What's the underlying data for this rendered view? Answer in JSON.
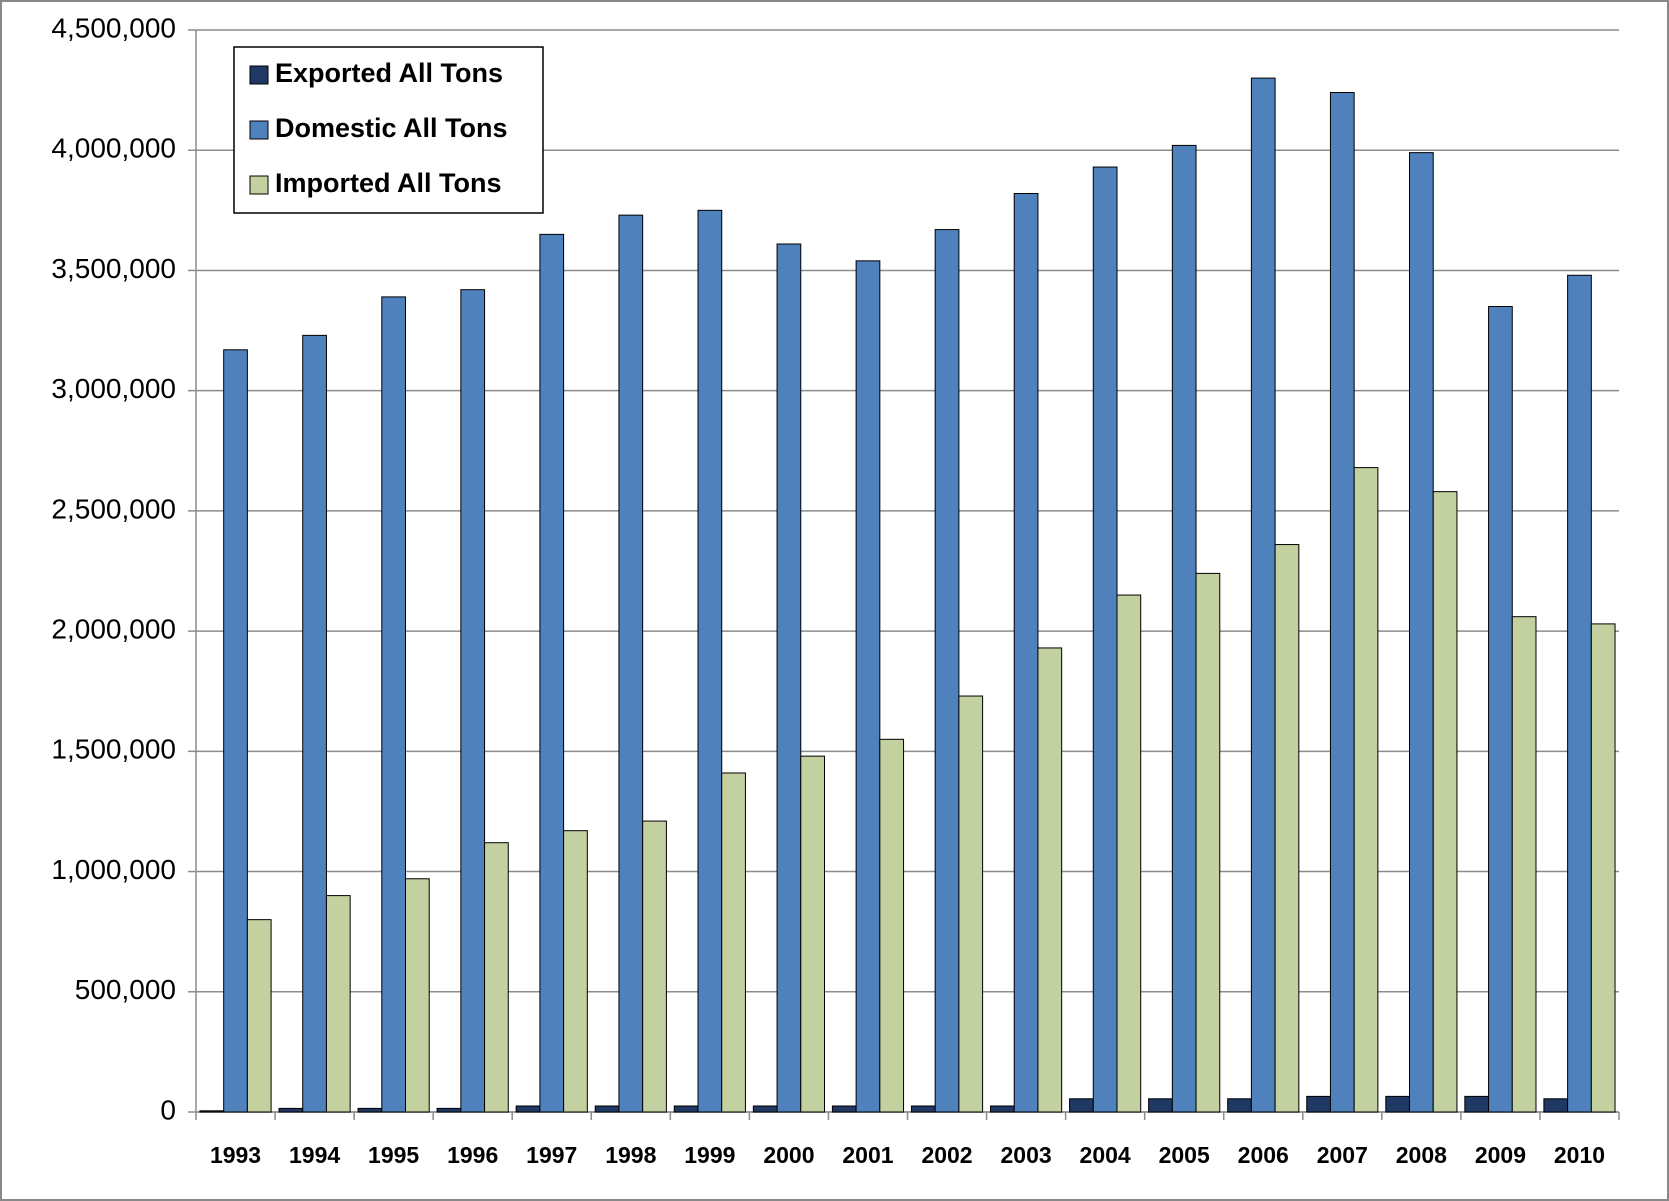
{
  "chart_data": {
    "type": "bar",
    "categories": [
      "1993",
      "1994",
      "1995",
      "1996",
      "1997",
      "1998",
      "1999",
      "2000",
      "2001",
      "2002",
      "2003",
      "2004",
      "2005",
      "2006",
      "2007",
      "2008",
      "2009",
      "2010"
    ],
    "series": [
      {
        "name": "Exported All Tons",
        "color": "#1f3864",
        "values": [
          5000,
          15000,
          15000,
          15000,
          25000,
          25000,
          25000,
          25000,
          25000,
          25000,
          25000,
          55000,
          55000,
          55000,
          65000,
          65000,
          65000,
          55000
        ]
      },
      {
        "name": "Domestic All Tons",
        "color": "#4f81bd",
        "values": [
          3170000,
          3230000,
          3390000,
          3420000,
          3650000,
          3730000,
          3750000,
          3610000,
          3540000,
          3670000,
          3820000,
          3930000,
          4020000,
          4300000,
          4240000,
          3990000,
          3350000,
          3480000
        ]
      },
      {
        "name": "Imported All Tons",
        "color": "#c3d09f",
        "values": [
          800000,
          900000,
          970000,
          1120000,
          1170000,
          1210000,
          1410000,
          1480000,
          1550000,
          1730000,
          1930000,
          2150000,
          2240000,
          2360000,
          2680000,
          2580000,
          2060000,
          2030000
        ]
      }
    ],
    "ylim": [
      0,
      4500000
    ],
    "yticks": [
      0,
      {
        "value": 500000,
        "label": "500,000"
      },
      {
        "value": 1000000,
        "label": "1,000,000"
      },
      {
        "value": 1500000,
        "label": "1,500,000"
      },
      {
        "value": 2000000,
        "label": "2,000,000"
      },
      {
        "value": 2500000,
        "label": "2,500,000"
      },
      {
        "value": 3000000,
        "label": "3,000,000"
      },
      {
        "value": 3500000,
        "label": "3,500,000"
      },
      {
        "value": 4000000,
        "label": "4,000,000"
      },
      {
        "value": 4500000,
        "label": "4,500,000"
      }
    ],
    "grid": true,
    "legend": "top-left"
  }
}
